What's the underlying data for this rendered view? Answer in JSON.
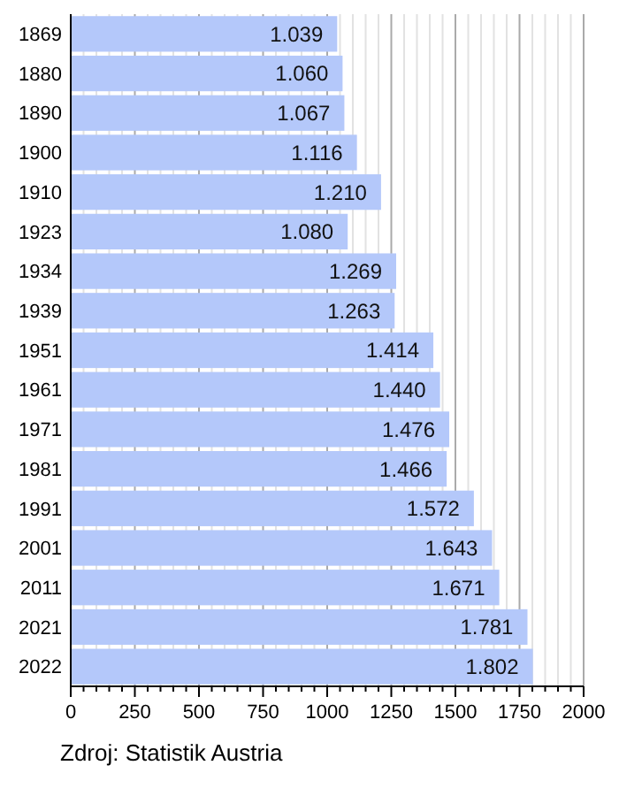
{
  "chart_data": {
    "type": "bar",
    "orientation": "horizontal",
    "categories": [
      "1869",
      "1880",
      "1890",
      "1900",
      "1910",
      "1923",
      "1934",
      "1939",
      "1951",
      "1961",
      "1971",
      "1981",
      "1991",
      "2001",
      "2011",
      "2021",
      "2022"
    ],
    "values": [
      1039,
      1060,
      1067,
      1116,
      1210,
      1080,
      1269,
      1263,
      1414,
      1440,
      1476,
      1466,
      1572,
      1643,
      1671,
      1781,
      1802
    ],
    "value_labels": [
      "1.039",
      "1.060",
      "1.067",
      "1.116",
      "1.210",
      "1.080",
      "1.269",
      "1.263",
      "1.414",
      "1.440",
      "1.476",
      "1.466",
      "1.572",
      "1.643",
      "1.671",
      "1.781",
      "1.802"
    ],
    "color": "#b4c8fa",
    "xlim": [
      0,
      2000
    ],
    "xticks": [
      0,
      {
        "value": 50,
        "label": null
      },
      {
        "value": 100,
        "label": null
      },
      {
        "value": 150,
        "label": null
      },
      {
        "value": 200,
        "label": null
      },
      250,
      {
        "value": 300,
        "label": null
      },
      {
        "value": 350,
        "label": null
      },
      {
        "value": 400,
        "label": null
      },
      {
        "value": 450,
        "label": null
      },
      500,
      {
        "value": 550,
        "label": null
      },
      {
        "value": 600,
        "label": null
      },
      {
        "value": 650,
        "label": null
      },
      {
        "value": 700,
        "label": null
      },
      750,
      {
        "value": 800,
        "label": null
      },
      {
        "value": 850,
        "label": null
      },
      {
        "value": 900,
        "label": null
      },
      {
        "value": 950,
        "label": null
      },
      1000,
      {
        "value": 1050,
        "label": null
      },
      {
        "value": 1100,
        "label": null
      },
      {
        "value": 1150,
        "label": null
      },
      {
        "value": 1200,
        "label": null
      },
      1250,
      {
        "value": 1300,
        "label": null
      },
      {
        "value": 1350,
        "label": null
      },
      {
        "value": 1400,
        "label": null
      },
      {
        "value": 1450,
        "label": null
      },
      1500,
      {
        "value": 1550,
        "label": null
      },
      {
        "value": 1600,
        "label": null
      },
      {
        "value": 1650,
        "label": null
      },
      {
        "value": 1700,
        "label": null
      },
      1750,
      {
        "value": 1800,
        "label": null
      },
      {
        "value": 1850,
        "label": null
      },
      {
        "value": 1900,
        "label": null
      },
      {
        "value": 1950,
        "label": null
      },
      2000
    ],
    "grid": "x",
    "annotations": [
      "Zdroj: Statistik Austria"
    ]
  }
}
